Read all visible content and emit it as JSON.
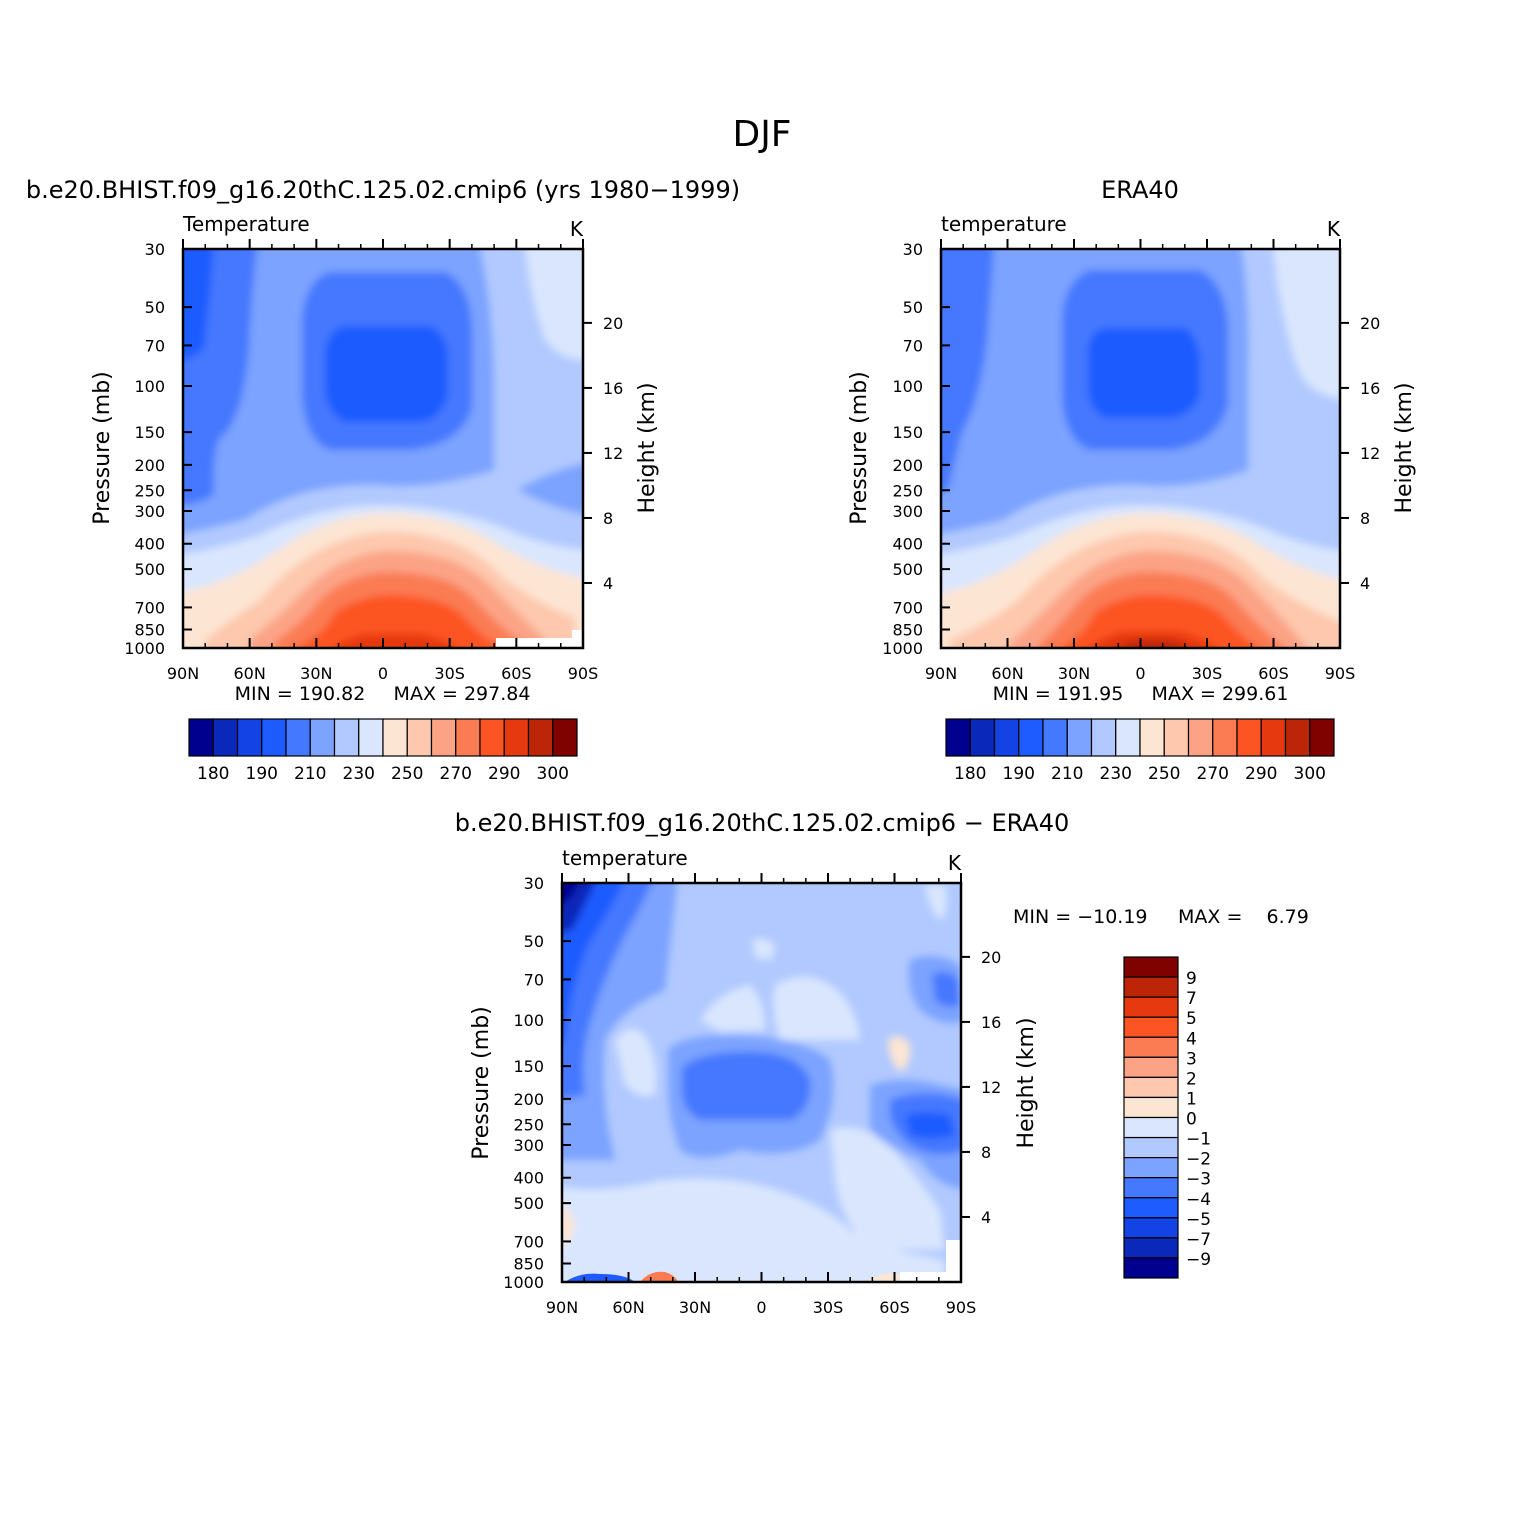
{
  "figure": {
    "season_title": "DJF",
    "difference_title": "b.e20.BHIST.f09_g16.20thC.125.02.cmip6 − ERA40"
  },
  "colors": {
    "temperature_scale": [
      "#00008f",
      "#0a28ba",
      "#1343e5",
      "#1f5cff",
      "#4478ff",
      "#7ba3ff",
      "#b1c9ff",
      "#d9e6fe",
      "#fde5d3",
      "#fdc8ad",
      "#fca386",
      "#fb7c52",
      "#fd5423",
      "#e6390f",
      "#bd2508",
      "#7f0200"
    ],
    "difference_scale": [
      "#00008f",
      "#0a28ba",
      "#1343e5",
      "#1f5cff",
      "#4478ff",
      "#7ba3ff",
      "#b1c9ff",
      "#d9e6fe",
      "#fde5d3",
      "#fdc8ad",
      "#fca386",
      "#fb7c52",
      "#fd5423",
      "#e6390f",
      "#bd2508",
      "#7f0200"
    ]
  },
  "chart_data": [
    {
      "type": "contour",
      "title": "b.e20.BHIST.f09_g16.20thC.125.02.cmip6 (yrs 1980−1999)",
      "left_label": "Temperature",
      "units": "K",
      "ylabel": "Pressure (mb)",
      "y2label": "Height (km)",
      "xticklabels": [
        "90N",
        "60N",
        "30N",
        "0",
        "30S",
        "60S",
        "90S"
      ],
      "x": [
        90,
        60,
        30,
        0,
        -30,
        -60,
        -90
      ],
      "yticks": [
        30,
        50,
        70,
        100,
        150,
        200,
        250,
        300,
        400,
        500,
        700,
        850,
        1000
      ],
      "ylim": [
        1000,
        30
      ],
      "y2ticks": [
        4,
        8,
        12,
        16,
        20
      ],
      "yscale": "log",
      "min_label": "MIN = 190.82",
      "max_label": "MAX = 297.84",
      "min": 190.82,
      "max": 297.84,
      "colorbar_labels": [
        "180",
        "190",
        "210",
        "230",
        "250",
        "270",
        "290",
        "300"
      ],
      "levels": [
        180,
        185,
        190,
        200,
        210,
        220,
        230,
        240,
        250,
        260,
        270,
        280,
        290,
        295,
        300
      ]
    },
    {
      "type": "contour",
      "title": "ERA40",
      "left_label": "temperature",
      "units": "K",
      "ylabel": "Pressure (mb)",
      "y2label": "Height (km)",
      "xticklabels": [
        "90N",
        "60N",
        "30N",
        "0",
        "30S",
        "60S",
        "90S"
      ],
      "x": [
        90,
        60,
        30,
        0,
        -30,
        -60,
        -90
      ],
      "yticks": [
        30,
        50,
        70,
        100,
        150,
        200,
        250,
        300,
        400,
        500,
        700,
        850,
        1000
      ],
      "ylim": [
        1000,
        30
      ],
      "y2ticks": [
        4,
        8,
        12,
        16,
        20
      ],
      "yscale": "log",
      "min_label": "MIN = 191.95",
      "max_label": "MAX = 299.61",
      "min": 191.95,
      "max": 299.61,
      "colorbar_labels": [
        "180",
        "190",
        "210",
        "230",
        "250",
        "270",
        "290",
        "300"
      ],
      "levels": [
        180,
        185,
        190,
        200,
        210,
        220,
        230,
        240,
        250,
        260,
        270,
        280,
        290,
        295,
        300
      ]
    },
    {
      "type": "contour",
      "title": "b.e20.BHIST.f09_g16.20thC.125.02.cmip6 − ERA40",
      "left_label": "temperature",
      "units": "K",
      "ylabel": "Pressure (mb)",
      "y2label": "Height (km)",
      "xticklabels": [
        "90N",
        "60N",
        "30N",
        "0",
        "30S",
        "60S",
        "90S"
      ],
      "x": [
        90,
        60,
        30,
        0,
        -30,
        -60,
        -90
      ],
      "yticks": [
        30,
        50,
        70,
        100,
        150,
        200,
        250,
        300,
        400,
        500,
        700,
        850,
        1000
      ],
      "ylim": [
        1000,
        30
      ],
      "y2ticks": [
        4,
        8,
        12,
        16,
        20
      ],
      "yscale": "log",
      "min_label": "MIN = −10.19",
      "max_label": "MAX =    6.79",
      "min": -10.19,
      "max": 6.79,
      "colorbar_labels": [
        "9",
        "7",
        "5",
        "4",
        "3",
        "2",
        "1",
        "0",
        "−1",
        "−2",
        "−3",
        "−4",
        "−5",
        "−7",
        "−9"
      ],
      "levels": [
        -9,
        -7,
        -5,
        -4,
        -3,
        -2,
        -1,
        0,
        1,
        2,
        3,
        4,
        5,
        7,
        9
      ]
    }
  ]
}
